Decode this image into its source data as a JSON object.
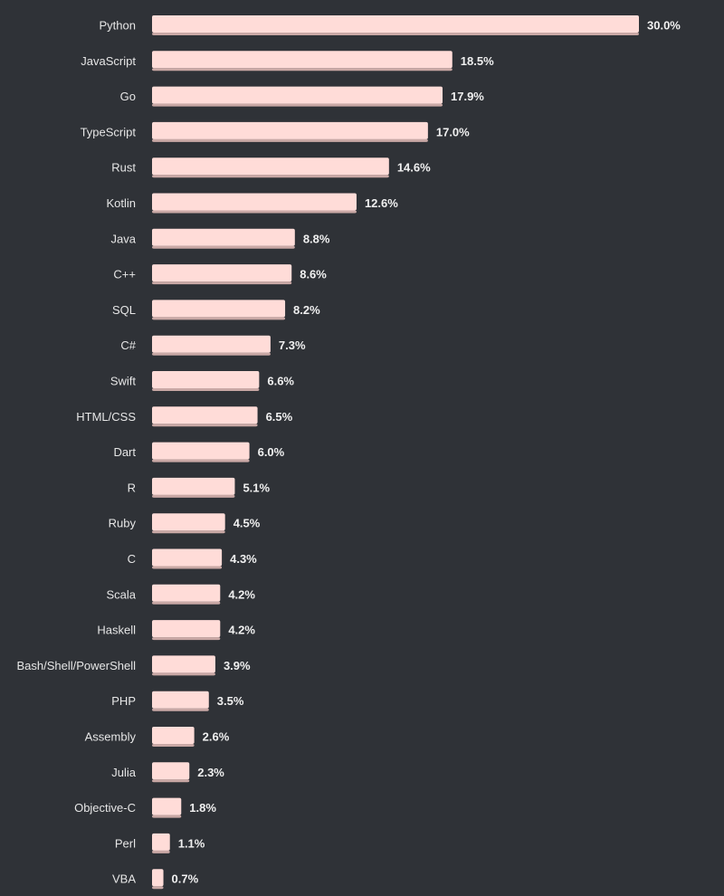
{
  "colors": {
    "background": "#2f3237",
    "bar": "#ffdcd8",
    "bar_shadow": "#c9a8a5",
    "label": "#e6e6e6",
    "value_label": "#f0f0f0"
  },
  "chart_data": {
    "type": "bar",
    "orientation": "horizontal",
    "title": "",
    "xlabel": "",
    "ylabel": "",
    "xlim": [
      0,
      30
    ],
    "grid": false,
    "legend": "none",
    "value_suffix": "%",
    "categories": [
      "Python",
      "JavaScript",
      "Go",
      "TypeScript",
      "Rust",
      "Kotlin",
      "Java",
      "C++",
      "SQL",
      "C#",
      "Swift",
      "HTML/CSS",
      "Dart",
      "R",
      "Ruby",
      "C",
      "Scala",
      "Haskell",
      "Bash/Shell/PowerShell",
      "PHP",
      "Assembly",
      "Julia",
      "Objective-C",
      "Perl",
      "VBA"
    ],
    "values": [
      30.0,
      18.5,
      17.9,
      17.0,
      14.6,
      12.6,
      8.8,
      8.6,
      8.2,
      7.3,
      6.6,
      6.5,
      6.0,
      5.1,
      4.5,
      4.3,
      4.2,
      4.2,
      3.9,
      3.5,
      2.6,
      2.3,
      1.8,
      1.1,
      0.7
    ],
    "value_labels": [
      "30.0%",
      "18.5%",
      "17.9%",
      "17.0%",
      "14.6%",
      "12.6%",
      "8.8%",
      "8.6%",
      "8.2%",
      "7.3%",
      "6.6%",
      "6.5%",
      "6.0%",
      "5.1%",
      "4.5%",
      "4.3%",
      "4.2%",
      "4.2%",
      "3.9%",
      "3.5%",
      "2.6%",
      "2.3%",
      "1.8%",
      "1.1%",
      "0.7%"
    ]
  }
}
